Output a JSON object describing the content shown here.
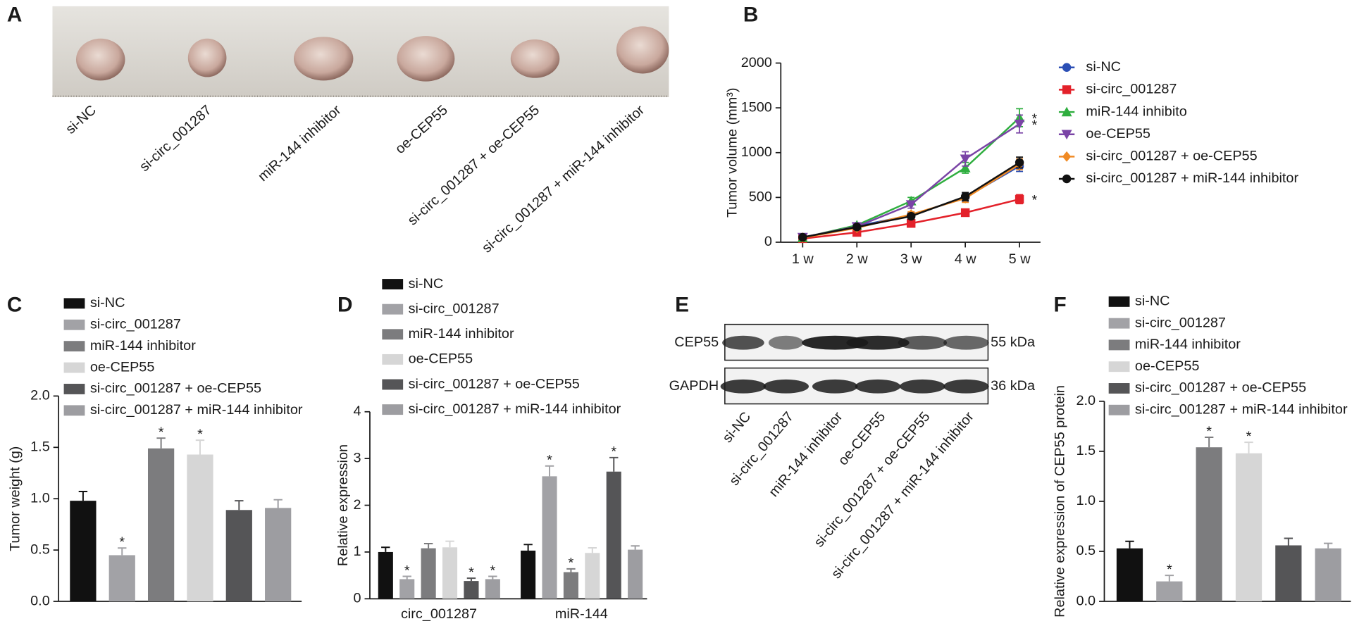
{
  "panel_a": {
    "panel": "A",
    "labels": [
      "si-NC",
      "si-circ_001287",
      "miR-144 inhibitor",
      "oe-CEP55",
      "si-circ_001287 + oe-CEP55",
      "si-circ_001287 + miR-144 inhibitor"
    ]
  },
  "panel_e": {
    "panel": "E",
    "rows": [
      "CEP55",
      "GAPDH"
    ],
    "sizes": [
      "55 kDa",
      "36 kDa"
    ],
    "lanes": [
      "si-NC",
      "si-circ_001287",
      "miR-144 inhibitor",
      "oe-CEP55",
      "si-circ_001287 + oe-CEP55",
      "si-circ_001287 + miR-144 inhibitor"
    ]
  },
  "chart_data": [
    {
      "type": "line",
      "panel": "B",
      "y_label": "Tumor volume (mm³)",
      "categories": [
        "1 w",
        "2 w",
        "3 w",
        "4 w",
        "5 w"
      ],
      "ylim": [
        0,
        2000
      ],
      "yticks": [
        0,
        500,
        1000,
        1500,
        2000
      ],
      "series": [
        {
          "name": "si-NC",
          "color": "#2b4fb5",
          "marker": "circle",
          "values": [
            50,
            180,
            300,
            500,
            850
          ],
          "errors": [
            15,
            25,
            30,
            45,
            60
          ]
        },
        {
          "name": "si-circ_001287",
          "color": "#e3212a",
          "marker": "square",
          "values": [
            40,
            110,
            210,
            330,
            480
          ],
          "errors": [
            12,
            20,
            30,
            30,
            50
          ],
          "sig": [
            null,
            null,
            null,
            null,
            "*"
          ]
        },
        {
          "name": "miR-144 inhibito",
          "color": "#2fae3f",
          "marker": "triangle",
          "values": [
            50,
            190,
            460,
            830,
            1390
          ],
          "errors": [
            15,
            25,
            40,
            60,
            100
          ],
          "sig": [
            null,
            null,
            null,
            null,
            "*"
          ]
        },
        {
          "name": "oe-CEP55",
          "color": "#7a44a6",
          "marker": "triangle-down",
          "values": [
            55,
            175,
            420,
            930,
            1320
          ],
          "errors": [
            15,
            25,
            40,
            80,
            100
          ],
          "sig": [
            null,
            null,
            null,
            null,
            "*"
          ]
        },
        {
          "name": "si-circ_001287 + oe-CEP55",
          "color": "#f08a24",
          "marker": "diamond",
          "values": [
            50,
            160,
            310,
            490,
            870
          ],
          "errors": [
            15,
            25,
            30,
            45,
            60
          ]
        },
        {
          "name": "si-circ_001287 + miR-144 inhibitor",
          "color": "#111111",
          "marker": "circle",
          "values": [
            55,
            170,
            290,
            510,
            890
          ],
          "errors": [
            15,
            25,
            30,
            45,
            60
          ]
        }
      ]
    },
    {
      "type": "bar",
      "panel": "C",
      "y_label": "Tumor weight (g)",
      "ylim": [
        0,
        2
      ],
      "yticks": [
        {
          "value": 0,
          "label": "0.0"
        },
        0.5,
        {
          "value": 1,
          "label": "1.0"
        },
        1.5,
        {
          "value": 2,
          "label": "2.0"
        }
      ],
      "series": [
        {
          "name": "si-NC",
          "color": "#111111",
          "values": [
            0.98
          ],
          "errors": [
            0.09
          ]
        },
        {
          "name": "si-circ_001287",
          "color": "#a2a2a6",
          "values": [
            0.45
          ],
          "errors": [
            0.07
          ],
          "sig": [
            "*"
          ]
        },
        {
          "name": "miR-144 inhibitor",
          "color": "#7c7c7e",
          "values": [
            1.49
          ],
          "errors": [
            0.1
          ],
          "sig": [
            "*"
          ]
        },
        {
          "name": "oe-CEP55",
          "color": "#d6d6d6",
          "values": [
            1.43
          ],
          "errors": [
            0.14
          ],
          "sig": [
            "*"
          ]
        },
        {
          "name": "si-circ_001287 + oe-CEP55",
          "color": "#555557",
          "values": [
            0.89
          ],
          "errors": [
            0.09
          ]
        },
        {
          "name": "si-circ_001287 + miR-144 inhibitor",
          "color": "#9d9da1",
          "values": [
            0.91
          ],
          "errors": [
            0.08
          ]
        }
      ]
    },
    {
      "type": "bar",
      "panel": "D",
      "y_label": "Relative expression",
      "categories": [
        "circ_001287",
        "miR-144"
      ],
      "ylim": [
        0,
        4
      ],
      "yticks": [
        0,
        1,
        2,
        3,
        4
      ],
      "series": [
        {
          "name": "si-NC",
          "color": "#111111",
          "values": [
            1.0,
            1.03
          ],
          "errors": [
            0.1,
            0.13
          ]
        },
        {
          "name": "si-circ_001287",
          "color": "#a2a2a6",
          "values": [
            0.42,
            2.62
          ],
          "errors": [
            0.06,
            0.22
          ],
          "sig": [
            "*",
            "*"
          ]
        },
        {
          "name": "miR-144 inhibitor",
          "color": "#7c7c7e",
          "values": [
            1.08,
            0.57
          ],
          "errors": [
            0.1,
            0.07
          ],
          "sig": [
            null,
            "*"
          ]
        },
        {
          "name": "oe-CEP55",
          "color": "#d6d6d6",
          "values": [
            1.1,
            0.98
          ],
          "errors": [
            0.13,
            0.11
          ]
        },
        {
          "name": "si-circ_001287 + oe-CEP55",
          "color": "#555557",
          "values": [
            0.38,
            2.72
          ],
          "errors": [
            0.06,
            0.3
          ],
          "sig": [
            "*",
            "*"
          ]
        },
        {
          "name": "si-circ_001287 + miR-144 inhibitor",
          "color": "#9d9da1",
          "values": [
            0.42,
            1.05
          ],
          "errors": [
            0.06,
            0.08
          ],
          "sig": [
            "*",
            null
          ]
        }
      ]
    },
    {
      "type": "bar",
      "panel": "F",
      "y_label": "Relative expression of CEP55 protein",
      "ylim": [
        0,
        2
      ],
      "yticks": [
        {
          "value": 0,
          "label": "0.0"
        },
        0.5,
        {
          "value": 1,
          "label": "1.0"
        },
        1.5,
        {
          "value": 2,
          "label": "2.0"
        }
      ],
      "series": [
        {
          "name": "si-NC",
          "color": "#111111",
          "values": [
            0.53
          ],
          "errors": [
            0.07
          ]
        },
        {
          "name": "si-circ_001287",
          "color": "#a2a2a6",
          "values": [
            0.2
          ],
          "errors": [
            0.06
          ],
          "sig": [
            "*"
          ]
        },
        {
          "name": "miR-144 inhibitor",
          "color": "#7c7c7e",
          "values": [
            1.54
          ],
          "errors": [
            0.1
          ],
          "sig": [
            "*"
          ]
        },
        {
          "name": "oe-CEP55",
          "color": "#d6d6d6",
          "values": [
            1.48
          ],
          "errors": [
            0.11
          ],
          "sig": [
            "*"
          ]
        },
        {
          "name": "si-circ_001287 + oe-CEP55",
          "color": "#555557",
          "values": [
            0.56
          ],
          "errors": [
            0.07
          ]
        },
        {
          "name": "si-circ_001287 + miR-144 inhibitor",
          "color": "#9d9da1",
          "values": [
            0.53
          ],
          "errors": [
            0.05
          ]
        }
      ]
    }
  ]
}
